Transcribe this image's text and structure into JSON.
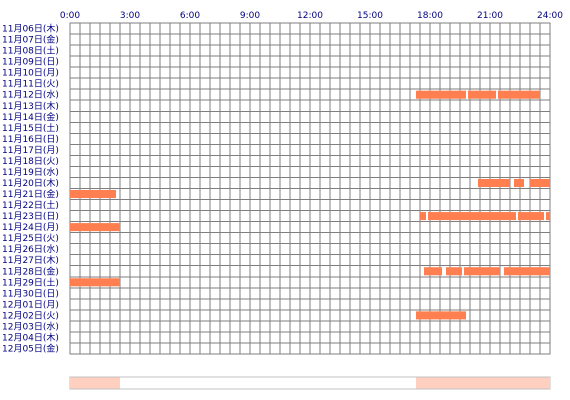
{
  "chart_data": {
    "type": "timeline",
    "title": "",
    "x_ticks": [
      "0:00",
      "3:00",
      "6:00",
      "9:00",
      "12:00",
      "15:00",
      "18:00",
      "21:00",
      "24:00"
    ],
    "x_range_hours": [
      0,
      24
    ],
    "rows": [
      {
        "label": "11月06日(木)",
        "intervals": []
      },
      {
        "label": "11月07日(金)",
        "intervals": []
      },
      {
        "label": "11月08日(土)",
        "intervals": []
      },
      {
        "label": "11月09日(日)",
        "intervals": []
      },
      {
        "label": "11月10日(月)",
        "intervals": []
      },
      {
        "label": "11月11日(火)",
        "intervals": []
      },
      {
        "label": "11月12日(水)",
        "intervals": [
          [
            17.3,
            19.8
          ],
          [
            19.9,
            21.3
          ],
          [
            21.4,
            23.5
          ]
        ]
      },
      {
        "label": "11月13日(木)",
        "intervals": []
      },
      {
        "label": "11月14日(金)",
        "intervals": []
      },
      {
        "label": "11月15日(土)",
        "intervals": []
      },
      {
        "label": "11月16日(日)",
        "intervals": []
      },
      {
        "label": "11月17日(月)",
        "intervals": []
      },
      {
        "label": "11月18日(火)",
        "intervals": []
      },
      {
        "label": "11月19日(水)",
        "intervals": []
      },
      {
        "label": "11月20日(木)",
        "intervals": [
          [
            20.4,
            22.0
          ],
          [
            22.2,
            22.7
          ],
          [
            23.0,
            24.0
          ]
        ]
      },
      {
        "label": "11月21日(金)",
        "intervals": [
          [
            0.0,
            2.3
          ]
        ]
      },
      {
        "label": "11月22日(土)",
        "intervals": []
      },
      {
        "label": "11月23日(日)",
        "intervals": [
          [
            17.5,
            17.8
          ],
          [
            17.9,
            22.3
          ],
          [
            22.4,
            23.7
          ],
          [
            23.8,
            24.0
          ]
        ]
      },
      {
        "label": "11月24日(月)",
        "intervals": [
          [
            0.0,
            2.5
          ]
        ]
      },
      {
        "label": "11月25日(火)",
        "intervals": []
      },
      {
        "label": "11月26日(水)",
        "intervals": []
      },
      {
        "label": "11月27日(木)",
        "intervals": []
      },
      {
        "label": "11月28日(金)",
        "intervals": [
          [
            17.7,
            18.6
          ],
          [
            18.8,
            19.6
          ],
          [
            19.7,
            21.5
          ],
          [
            21.7,
            24.0
          ]
        ]
      },
      {
        "label": "11月29日(土)",
        "intervals": [
          [
            0.0,
            2.5
          ]
        ]
      },
      {
        "label": "11月30日(日)",
        "intervals": []
      },
      {
        "label": "12月01日(月)",
        "intervals": []
      },
      {
        "label": "12月02日(火)",
        "intervals": [
          [
            17.3,
            19.8
          ]
        ]
      },
      {
        "label": "12月03日(水)",
        "intervals": []
      },
      {
        "label": "12月04日(木)",
        "intervals": []
      },
      {
        "label": "12月05日(金)",
        "intervals": []
      }
    ],
    "summary_bar_segments": [
      [
        0.0,
        2.5
      ],
      [
        17.3,
        24.0
      ]
    ],
    "bar_color": "#ff7f50",
    "summary_color": "#ffcfbf",
    "grid_color": "#7f7f7f"
  }
}
